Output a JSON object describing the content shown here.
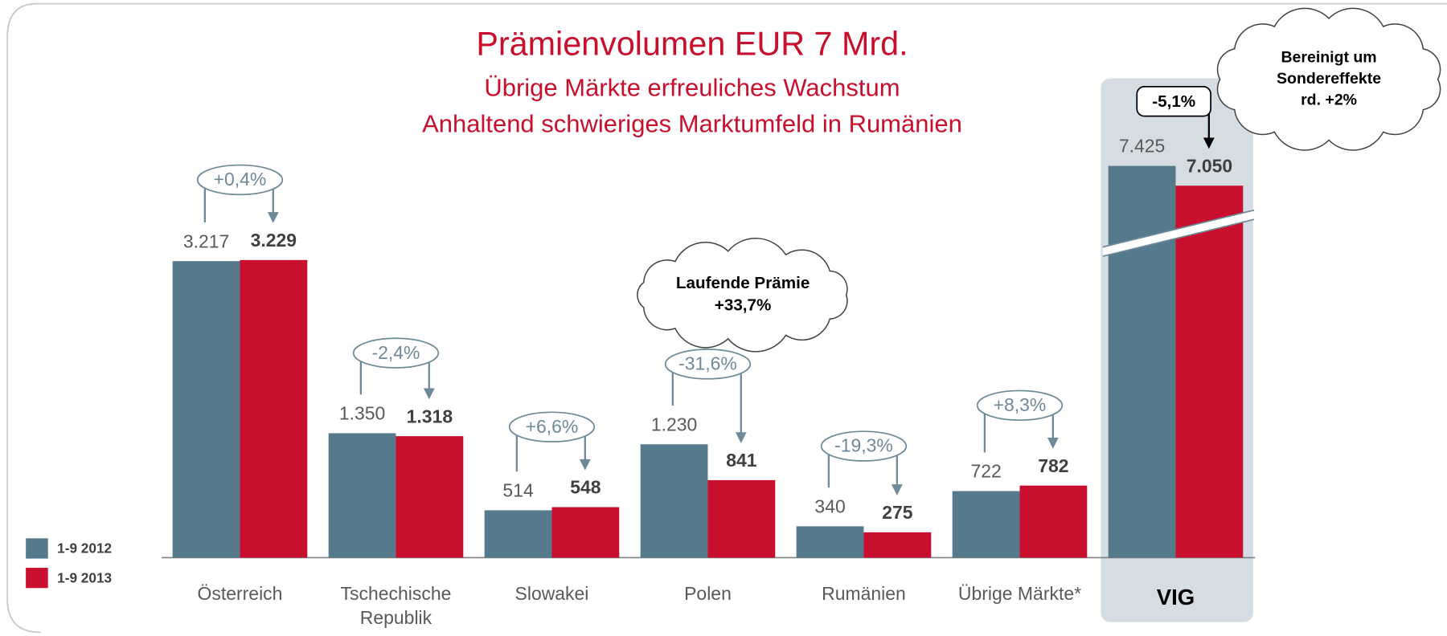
{
  "chart_data": {
    "type": "bar",
    "title": "Prämienvolumen EUR 7 Mrd.",
    "subtitle": [
      "Übrige Märkte erfreuliches Wachstum",
      "Anhaltend schwieriges Marktumfeld in Rumänien"
    ],
    "categories": [
      "Österreich",
      "Tschechische Republik",
      "Slowakei",
      "Polen",
      "Rumänien",
      "Übrige Märkte*",
      "VIG"
    ],
    "series": [
      {
        "name": "1-9 2012",
        "color": "#557a8c",
        "values": [
          3217,
          1350,
          514,
          1230,
          340,
          722,
          7425
        ],
        "value_labels": [
          "3.217",
          "1.350",
          "514",
          "1.230",
          "340",
          "722",
          "7.425"
        ]
      },
      {
        "name": "1-9 2013",
        "color": "#c8102e",
        "values": [
          3229,
          1318,
          548,
          841,
          275,
          782,
          7050
        ],
        "value_labels": [
          "3.229",
          "1.318",
          "548",
          "841",
          "275",
          "782",
          "7.050"
        ]
      }
    ],
    "growth_labels": [
      "+0,4%",
      "-2,4%",
      "+6,6%",
      "-31,6%",
      "-19,3%",
      "+8,3%",
      "-5,1%"
    ],
    "callouts": [
      {
        "lines": [
          "Laufende Prämie",
          "+33,7%"
        ]
      },
      {
        "lines": [
          "Bereinigt um",
          "Sondereffekte",
          "rd. +2%"
        ]
      }
    ],
    "axis_break": true,
    "legend": "bottom-left"
  }
}
